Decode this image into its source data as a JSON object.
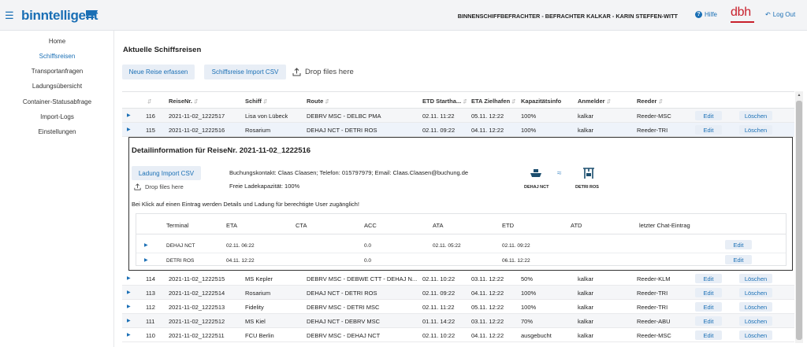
{
  "header": {
    "logo": "binntelligent",
    "context": "BINNENSCHIFFBEFRACHTER - BEFRACHTER KALKAR - KARIN STEFFEN-WITT",
    "help_label": "Hilfe",
    "partner_logo": "dbh",
    "logout_label": "Log Out"
  },
  "sidebar": {
    "items": [
      {
        "label": "Home"
      },
      {
        "label": "Schiffsreisen",
        "active": true
      },
      {
        "label": "Transportanfragen"
      },
      {
        "label": "Ladungsübersicht"
      },
      {
        "label": "Container-Statusabfrage"
      },
      {
        "label": "Import-Logs"
      },
      {
        "label": "Einstellungen"
      }
    ]
  },
  "main": {
    "title": "Aktuelle Schiffsreisen",
    "new_trip_button": "Neue Reise erfassen",
    "import_button": "Schiffsreise Import CSV",
    "drop_label": "Drop files here"
  },
  "table": {
    "columns": [
      "ReiseNr.",
      "Schiff",
      "Route",
      "ETD Starthа...",
      "ETA Zielhafen",
      "Kapazitätsinfo",
      "Anmelder",
      "Reeder"
    ],
    "edit_label": "Edit",
    "delete_label": "Löschen",
    "rows_top": [
      {
        "id": "116",
        "reise": "2021-11-02_1222517",
        "schiff": "Lisa von Lübeck",
        "route": "DEBRV MSC - DELBC PMA",
        "etd": "02.11. 11:22",
        "eta": "05.11. 12:22",
        "kap": "100%",
        "anmelder": "kalkar",
        "reeder": "Reeder-MSC"
      },
      {
        "id": "115",
        "reise": "2021-11-02_1222516",
        "schiff": "Rosarium",
        "route": "DEHAJ NCT - DETRI ROS",
        "etd": "02.11. 09:22",
        "eta": "04.11. 12:22",
        "kap": "100%",
        "anmelder": "kalkar",
        "reeder": "Reeder-TRI"
      }
    ],
    "rows_bottom": [
      {
        "id": "114",
        "reise": "2021-11-02_1222515",
        "schiff": "MS Kepler",
        "route": "DEBRV MSC - DEBWE CTT - DEHAJ N...",
        "etd": "02.11. 10:22",
        "eta": "03.11. 12:22",
        "kap": "50%",
        "anmelder": "kalkar",
        "reeder": "Reeder-KLM"
      },
      {
        "id": "113",
        "reise": "2021-11-02_1222514",
        "schiff": "Rosarium",
        "route": "DEHAJ NCT - DETRI ROS",
        "etd": "02.11. 09:22",
        "eta": "04.11. 12:22",
        "kap": "100%",
        "anmelder": "kalkar",
        "reeder": "Reeder-TRI"
      },
      {
        "id": "112",
        "reise": "2021-11-02_1222513",
        "schiff": "Fidelity",
        "route": "DEBRV MSC - DETRI MSC",
        "etd": "02.11. 11:22",
        "eta": "05.11. 12:22",
        "kap": "100%",
        "anmelder": "kalkar",
        "reeder": "Reeder-TRI"
      },
      {
        "id": "111",
        "reise": "2021-11-02_1222512",
        "schiff": "MS Kiel",
        "route": "DEHAJ NCT - DEBRV MSC",
        "etd": "01.11. 14:22",
        "eta": "03.11. 12:22",
        "kap": "70%",
        "anmelder": "kalkar",
        "reeder": "Reeder-ABU"
      },
      {
        "id": "110",
        "reise": "2021-11-02_1222511",
        "schiff": "FCU Berlin",
        "route": "DEBRV MSC - DEHAJ NCT",
        "etd": "02.11. 10:22",
        "eta": "04.11. 12:22",
        "kap": "ausgebucht",
        "anmelder": "kalkar",
        "reeder": "Reeder-MSC"
      }
    ]
  },
  "detail": {
    "title": "Detailinformation für ReiseNr. 2021-11-02_1222516",
    "import_button": "Ladung Import CSV",
    "drop_label": "Drop files here",
    "contact": "Buchungskontakt: Claas Claasen; Telefon: 015797979; Email: Claas.Claasen@buchung.de",
    "capacity": "Freie Ladekapazität: 100%",
    "from_label": "DEHAJ NCT",
    "to_label": "DETRI ROS",
    "hint": "Bei Klick auf einen Eintrag werden Details und Ladung für berechtigte User zugänglich!",
    "columns": [
      "Terminal",
      "ETA",
      "CTA",
      "ACC",
      "ATA",
      "ETD",
      "ATD",
      "letzter Chat-Eintrag"
    ],
    "rows": [
      {
        "terminal": "DEHAJ NCT",
        "eta": "02.11. 06:22",
        "cta": "",
        "acc": "0.0",
        "ata": "02.11. 05:22",
        "etd": "02.11. 09:22",
        "atd": "",
        "chat": ""
      },
      {
        "terminal": "DETRI ROS",
        "eta": "04.11. 12:22",
        "cta": "",
        "acc": "0.0",
        "ata": "",
        "etd": "06.11. 12:22",
        "atd": "",
        "chat": ""
      }
    ],
    "edit_label": "Edit"
  },
  "colors": {
    "accent": "#1a6fb5",
    "brand_red": "#c8202c"
  },
  "icons": [
    "hamburger-icon",
    "help-icon",
    "logout-icon",
    "upload-icon",
    "ship-icon",
    "waves-icon",
    "crane-icon",
    "expand-caret-icon",
    "sort-icon"
  ]
}
